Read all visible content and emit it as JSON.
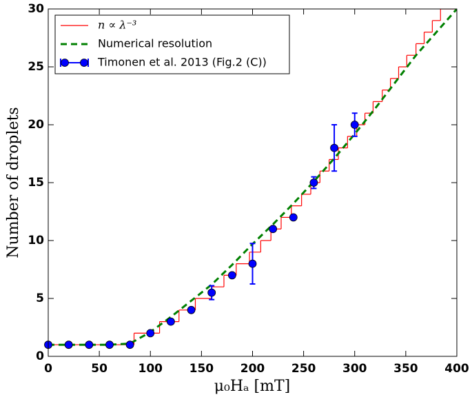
{
  "chart_data": {
    "type": "line",
    "xlabel": "μ₀Hₐ [mT]",
    "ylabel": "Number of droplets",
    "xlim": [
      0,
      400
    ],
    "ylim": [
      0,
      30
    ],
    "xticks": [
      0,
      50,
      100,
      150,
      200,
      250,
      300,
      350,
      400
    ],
    "yticks": [
      0,
      5,
      10,
      15,
      20,
      25,
      30
    ],
    "grid": false,
    "legend": "upper left",
    "series": [
      {
        "name": "n ∝ λ⁻³",
        "color": "#ff0000",
        "drawstyle": "steps-post",
        "x": [
          0,
          84,
          109,
          128,
          144,
          160,
          172,
          184,
          197,
          208,
          218,
          228,
          238,
          248,
          257,
          266,
          275,
          284,
          293,
          302,
          310,
          318,
          327,
          335,
          343,
          351,
          360,
          368,
          376,
          384,
          400
        ],
        "values": [
          1,
          2,
          3,
          4,
          5,
          6,
          7,
          8,
          9,
          10,
          11,
          12,
          13,
          14,
          15,
          16,
          17,
          18,
          19,
          20,
          21,
          22,
          23,
          24,
          25,
          26,
          27,
          28,
          29,
          30,
          30
        ]
      },
      {
        "name": "Numerical resolution",
        "color": "#008000",
        "linestyle": "dashed",
        "x": [
          0,
          20,
          40,
          60,
          80,
          100,
          120,
          140,
          160,
          180,
          200,
          220,
          240,
          260,
          280,
          300,
          320,
          340,
          360,
          380,
          400
        ],
        "values": [
          1,
          1,
          1,
          1,
          1.1,
          2.1,
          3.4,
          4.8,
          6.2,
          7.9,
          9.7,
          11.4,
          13.2,
          15.1,
          17.1,
          19.2,
          21.4,
          23.7,
          26,
          28,
          30
        ]
      },
      {
        "name": "Timonen et al. 2013 (Fig.2 (C))",
        "color": "#0000ff",
        "marker": "o",
        "x": [
          0,
          20,
          40,
          60,
          80,
          100,
          120,
          140,
          160,
          180,
          200,
          220,
          240,
          260,
          280,
          300
        ],
        "values": [
          1,
          1,
          1,
          1,
          1,
          2,
          3,
          4,
          5.5,
          7,
          8,
          11,
          12,
          15,
          18,
          20
        ],
        "errors": [
          null,
          null,
          null,
          null,
          null,
          null,
          null,
          null,
          0.6,
          null,
          1.75,
          null,
          null,
          0.5,
          2,
          1
        ]
      }
    ]
  }
}
